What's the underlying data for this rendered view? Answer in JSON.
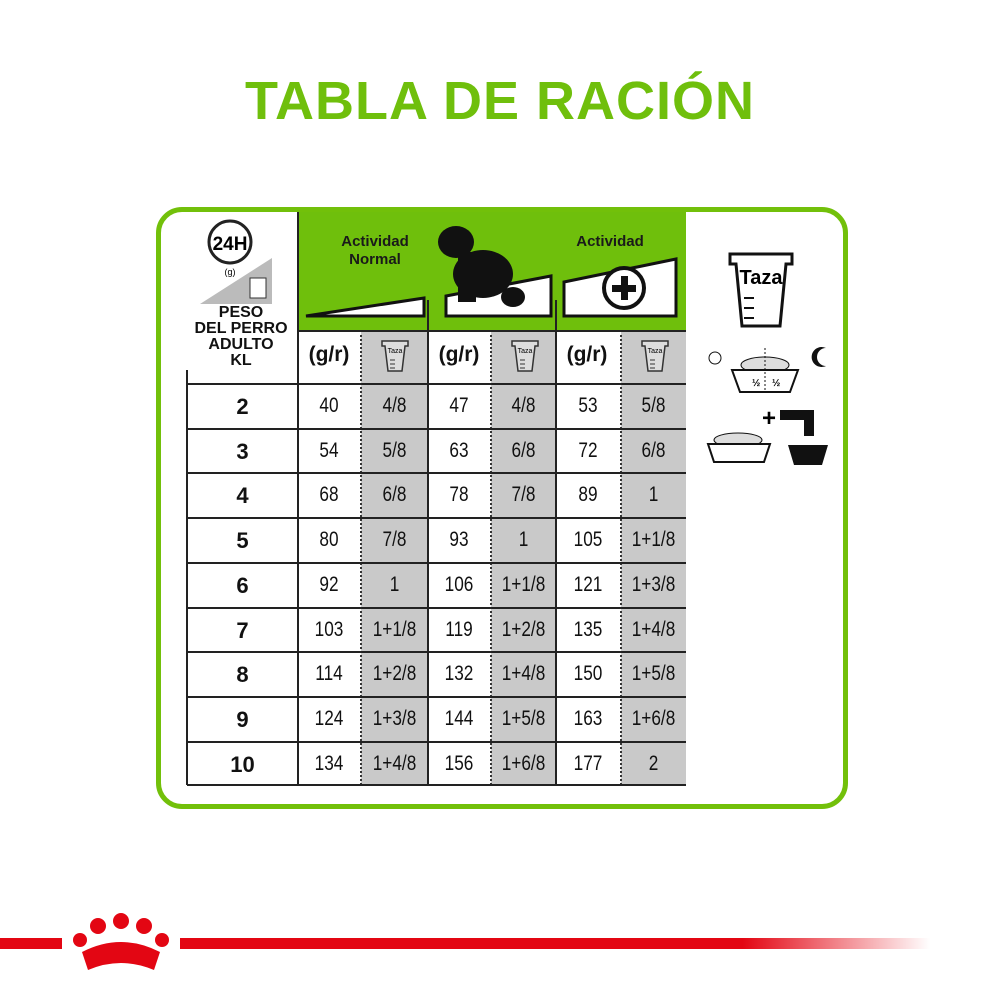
{
  "title": "TABLA DE RACIÓN",
  "left_header": {
    "clock": "24H",
    "grams": "(g)",
    "vaso": "vaso",
    "label_lines": [
      "PESO",
      "DEL PERRO",
      "ADULTO",
      "KL"
    ]
  },
  "groups": [
    {
      "label": "Actividad Normal",
      "unit": "(g/r)",
      "cup": "Taza"
    },
    {
      "label": "",
      "unit": "(g/r)",
      "cup": "Taza"
    },
    {
      "label": "Actividad",
      "unit": "(g/r)",
      "cup": "Taza"
    }
  ],
  "rows": [
    {
      "weight": "2",
      "v": [
        "40",
        "4/8",
        "47",
        "4/8",
        "53",
        "5/8"
      ]
    },
    {
      "weight": "3",
      "v": [
        "54",
        "5/8",
        "63",
        "6/8",
        "72",
        "6/8"
      ]
    },
    {
      "weight": "4",
      "v": [
        "68",
        "6/8",
        "78",
        "7/8",
        "89",
        "1"
      ]
    },
    {
      "weight": "5",
      "v": [
        "80",
        "7/8",
        "93",
        "1",
        "105",
        "1+1/8"
      ]
    },
    {
      "weight": "6",
      "v": [
        "92",
        "1",
        "106",
        "1+1/8",
        "121",
        "1+3/8"
      ]
    },
    {
      "weight": "7",
      "v": [
        "103",
        "1+1/8",
        "119",
        "1+2/8",
        "135",
        "1+4/8"
      ]
    },
    {
      "weight": "8",
      "v": [
        "114",
        "1+2/8",
        "132",
        "1+4/8",
        "150",
        "1+5/8"
      ]
    },
    {
      "weight": "9",
      "v": [
        "124",
        "1+3/8",
        "144",
        "1+5/8",
        "163",
        "1+6/8"
      ]
    },
    {
      "weight": "10",
      "v": [
        "134",
        "1+4/8",
        "156",
        "1+6/8",
        "177",
        "2"
      ]
    }
  ],
  "legend": {
    "cup": "Taza",
    "half_left": "½",
    "half_right": "½"
  },
  "colors": {
    "green": "#6fbf0c",
    "grey": "#c9c9c9",
    "red": "#e30613"
  }
}
